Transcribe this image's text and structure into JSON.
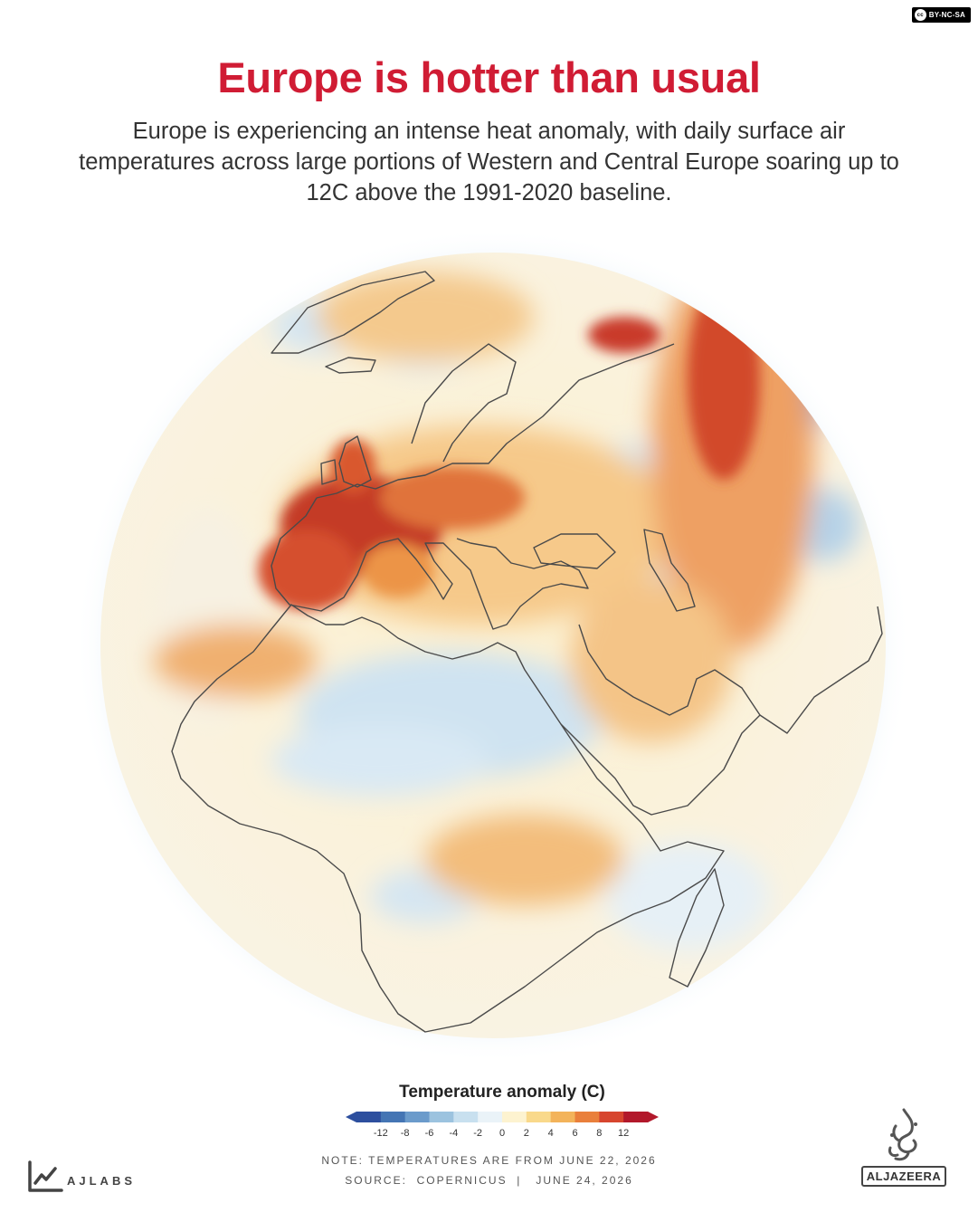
{
  "license": {
    "label": "BY-NC-SA",
    "cc_mark": "cc"
  },
  "header": {
    "title": "Europe is hotter than usual",
    "subtitle": "Europe is experiencing an intense heat anomaly, with daily surface air temperatures across large portions of Western and Central Europe soaring up to 12C above the 1991-2020 baseline."
  },
  "map": {
    "type": "orthographic globe heat-anomaly map",
    "icon": "globe-icon",
    "colors": {
      "hot": "#b2182b",
      "warm": "#ef8a3a",
      "mild": "#fbe3a7",
      "neutral": "#fdf8ea",
      "cool": "#cfe3f1",
      "cold": "#2d66b0"
    }
  },
  "legend": {
    "title": "Temperature anomaly (C)",
    "ticks": [
      "-12",
      "-8",
      "-6",
      "-4",
      "-2",
      "0",
      "2",
      "4",
      "6",
      "8",
      "12"
    ],
    "colors": [
      "#2d4f9e",
      "#4475b4",
      "#6b9bcb",
      "#9cc3df",
      "#c8e0ef",
      "#eaf3f8",
      "#fdf3d0",
      "#f9d98b",
      "#f3b35a",
      "#e97f3b",
      "#d7452e",
      "#b2182b"
    ]
  },
  "footer": {
    "note": "NOTE: TEMPERATURES ARE FROM JUNE 22, 2026",
    "source": "SOURCE:  COPERNICUS  |   JUNE 24, 2026"
  },
  "brand": {
    "ajlabs": "AJLABS",
    "ajlabs_icon": "line-chart-icon",
    "aljazeera": "ALJAZEERA",
    "aljazeera_icon": "aljazeera-calligraphy-icon"
  }
}
